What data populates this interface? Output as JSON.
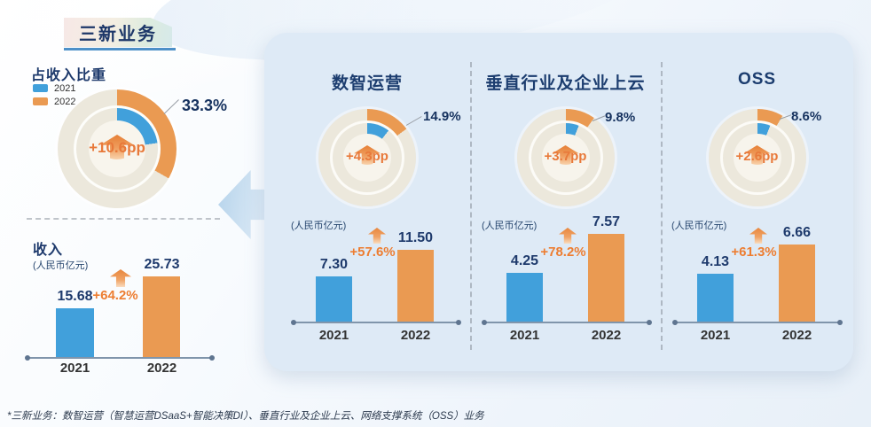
{
  "colors": {
    "blue": "#41A0DB",
    "orange": "#EA9A52",
    "navy_text": "#1E3A6C",
    "orange_text": "#ED7D31",
    "ring_beige": "#ECE8DC",
    "panel_bg": "#DEEAF6",
    "badge_underline": "#4E90C8"
  },
  "common": {
    "year_2021": "2021",
    "year_2022": "2022"
  },
  "header": {
    "badge_title": "三新业务"
  },
  "legend": {
    "items": [
      {
        "label": "2021",
        "color": "#41A0DB"
      },
      {
        "label": "2022",
        "color": "#EA9A52"
      }
    ]
  },
  "overview": {
    "share_title": "占收入比重",
    "share_callout": "33.3%",
    "share_pp": "+10.6pp",
    "share_2021": 22.7,
    "share_2022": 33.3,
    "revenue_title": "收入",
    "unit": "(人民币亿元)",
    "growth": "+64.2%",
    "v2021": 15.68,
    "v2022": 25.73,
    "v2021_label": "15.68",
    "v2022_label": "25.73"
  },
  "sections": [
    {
      "title": "数智运营",
      "share_callout": "14.9%",
      "share_pp": "+4.3pp",
      "share_2021": 10.6,
      "share_2022": 14.9,
      "unit": "(人民币亿元)",
      "growth": "+57.6%",
      "v2021": 7.3,
      "v2022": 11.5,
      "v2021_label": "7.30",
      "v2022_label": "11.50"
    },
    {
      "title": "垂直行业及企业上云",
      "share_callout": "9.8%",
      "share_pp": "+3.7pp",
      "share_2021": 6.1,
      "share_2022": 9.8,
      "unit": "(人民币亿元)",
      "growth": "+78.2%",
      "v2021": 4.25,
      "v2022": 7.57,
      "v2021_label": "4.25",
      "v2022_label": "7.57"
    },
    {
      "title": "OSS",
      "share_callout": "8.6%",
      "share_pp": "+2.6pp",
      "share_2021": 6.0,
      "share_2022": 8.6,
      "unit": "(人民币亿元)",
      "growth": "+61.3%",
      "v2021": 4.13,
      "v2022": 6.66,
      "v2021_label": "4.13",
      "v2022_label": "6.66"
    }
  ],
  "footnote": "*三新业务：数智运营（智慧运营DSaaS+智能决策DI）、垂直行业及企业上云、网络支撑系统（OSS）业务",
  "chart_data": [
    {
      "id": "overall_share_donut",
      "type": "pie",
      "title": "占收入比重",
      "unit": "% of revenue",
      "series": [
        {
          "name": "2021",
          "value": 22.7
        },
        {
          "name": "2022",
          "value": 33.3
        }
      ],
      "annotations": [
        "+10.6pp",
        "33.3%"
      ],
      "legend_position": "top-left"
    },
    {
      "id": "overall_revenue_bar",
      "type": "bar",
      "title": "收入",
      "ylabel": "人民币亿元",
      "categories": [
        "2021",
        "2022"
      ],
      "values": [
        15.68,
        25.73
      ],
      "annotations": [
        "+64.2%"
      ],
      "grid": false
    },
    {
      "id": "dsaas_share_donut",
      "type": "pie",
      "title": "数智运营",
      "unit": "% of revenue",
      "series": [
        {
          "name": "2021",
          "value": 10.6
        },
        {
          "name": "2022",
          "value": 14.9
        }
      ],
      "annotations": [
        "+4.3pp",
        "14.9%"
      ]
    },
    {
      "id": "dsaas_revenue_bar",
      "type": "bar",
      "title": "数智运营",
      "ylabel": "人民币亿元",
      "categories": [
        "2021",
        "2022"
      ],
      "values": [
        7.3,
        11.5
      ],
      "annotations": [
        "+57.6%"
      ],
      "grid": false
    },
    {
      "id": "vertical_share_donut",
      "type": "pie",
      "title": "垂直行业及企业上云",
      "unit": "% of revenue",
      "series": [
        {
          "name": "2021",
          "value": 6.1
        },
        {
          "name": "2022",
          "value": 9.8
        }
      ],
      "annotations": [
        "+3.7pp",
        "9.8%"
      ]
    },
    {
      "id": "vertical_revenue_bar",
      "type": "bar",
      "title": "垂直行业及企业上云",
      "ylabel": "人民币亿元",
      "categories": [
        "2021",
        "2022"
      ],
      "values": [
        4.25,
        7.57
      ],
      "annotations": [
        "+78.2%"
      ],
      "grid": false
    },
    {
      "id": "oss_share_donut",
      "type": "pie",
      "title": "OSS",
      "unit": "% of revenue",
      "series": [
        {
          "name": "2021",
          "value": 6.0
        },
        {
          "name": "2022",
          "value": 8.6
        }
      ],
      "annotations": [
        "+2.6pp",
        "8.6%"
      ]
    },
    {
      "id": "oss_revenue_bar",
      "type": "bar",
      "title": "OSS",
      "ylabel": "人民币亿元",
      "categories": [
        "2021",
        "2022"
      ],
      "values": [
        4.13,
        6.66
      ],
      "annotations": [
        "+61.3%"
      ],
      "grid": false
    }
  ]
}
